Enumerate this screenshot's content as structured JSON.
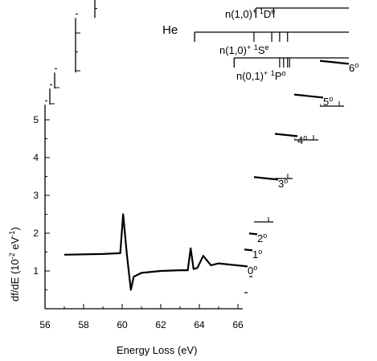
{
  "chart_data": {
    "type": "line",
    "atom_label": "He",
    "xlabel": "Energy Loss   (eV)",
    "ylabel": "df/dE  (10",
    "ylabel_exp": "-2",
    "ylabel_unit_tail": " eV",
    "ylabel_unit_exp": "-1",
    "ylabel_close": ")",
    "xlim": [
      56,
      66
    ],
    "ylim": [
      0,
      5.5
    ],
    "x_ticks": [
      "56",
      "58",
      "60",
      "62",
      "64",
      "66"
    ],
    "y_ticks": [
      "1",
      "2",
      "3",
      "4",
      "5"
    ],
    "series": [
      {
        "name": "0",
        "unit": "o",
        "offset": [
          0,
          0
        ],
        "x": [
          57.0,
          59.0,
          59.9,
          60.05,
          60.25,
          60.45,
          60.6,
          61,
          62,
          63,
          63.4,
          63.55,
          63.7,
          63.9,
          64.2,
          64.6,
          65.0,
          66.5
        ],
        "y": [
          1.43,
          1.45,
          1.47,
          2.5,
          1.4,
          0.5,
          0.85,
          0.95,
          1.0,
          1.02,
          1.02,
          1.6,
          1.05,
          1.08,
          1.4,
          1.15,
          1.2,
          1.12
        ]
      },
      {
        "name": "1",
        "unit": "o",
        "offset": [
          6,
          -20
        ],
        "x": [
          57.0,
          59.0,
          59.9,
          60.05,
          60.25,
          60.45,
          60.6,
          61,
          62,
          63,
          63.4,
          63.55,
          63.7,
          63.9,
          64.2,
          64.6,
          65.0,
          66.5
        ],
        "y": [
          1.43,
          1.45,
          1.47,
          2.5,
          1.4,
          0.5,
          0.85,
          0.95,
          1.0,
          1.02,
          1.02,
          1.6,
          1.05,
          1.08,
          1.4,
          1.15,
          1.2,
          1.12
        ]
      },
      {
        "name": "2",
        "unit": "o",
        "offset": [
          12,
          -40
        ],
        "x": [
          57.0,
          59.0,
          59.9,
          60.05,
          60.25,
          60.45,
          60.6,
          61,
          62,
          63,
          63.4,
          63.55,
          63.7,
          63.9,
          64.2,
          64.6,
          65.0,
          66.5
        ],
        "y": [
          1.43,
          1.45,
          1.47,
          2.5,
          1.4,
          0.5,
          0.85,
          0.95,
          1.0,
          1.02,
          1.02,
          1.6,
          1.05,
          1.08,
          1.4,
          1.15,
          1.2,
          1.12
        ]
      },
      {
        "name": "3",
        "unit": "o",
        "offset": [
          38,
          -108
        ],
        "x": [
          57.0,
          59.0,
          59.9,
          60.05,
          60.25,
          60.45,
          60.6,
          61,
          62,
          63,
          63.4,
          63.55,
          63.7,
          63.9,
          64.2,
          64.6,
          65.0,
          66.5
        ],
        "y": [
          1.43,
          1.45,
          1.47,
          2.5,
          1.4,
          0.5,
          0.85,
          0.95,
          1.0,
          1.02,
          1.02,
          1.6,
          1.05,
          1.08,
          1.4,
          1.15,
          1.2,
          1.12
        ]
      },
      {
        "name": "4",
        "unit": "o",
        "offset": [
          62,
          -162
        ],
        "x": [
          57.0,
          59.0,
          59.9,
          60.05,
          60.25,
          60.45,
          60.6,
          61,
          62,
          63,
          63.4,
          63.55,
          63.7,
          63.9,
          64.2,
          64.6,
          65.0,
          66.5
        ],
        "y": [
          1.43,
          1.45,
          1.47,
          2.5,
          1.4,
          0.5,
          0.85,
          0.95,
          1.0,
          1.02,
          1.02,
          1.6,
          1.05,
          1.08,
          1.4,
          1.15,
          1.2,
          1.12
        ]
      },
      {
        "name": "5",
        "unit": "o",
        "offset": [
          94,
          -210
        ],
        "x": [
          57.0,
          59.0,
          59.9,
          60.05,
          60.25,
          60.45,
          60.6,
          61,
          62,
          63,
          63.4,
          63.55,
          63.7,
          63.9,
          64.2,
          64.6,
          65.0,
          66.5
        ],
        "y": [
          1.43,
          1.45,
          1.47,
          2.5,
          1.4,
          0.5,
          0.85,
          0.95,
          1.0,
          1.02,
          1.02,
          1.6,
          1.05,
          1.08,
          1.4,
          1.15,
          1.2,
          1.12
        ]
      },
      {
        "name": "6",
        "unit": "o",
        "offset": [
          126,
          -252
        ],
        "x": [
          57.0,
          59.0,
          59.9,
          60.05,
          60.25,
          60.45,
          60.6,
          61,
          62,
          63,
          63.4,
          63.55,
          63.7,
          63.9,
          64.2,
          64.6,
          65.0,
          66.5
        ],
        "y": [
          1.43,
          1.45,
          1.47,
          2.5,
          1.4,
          0.5,
          0.85,
          0.95,
          1.0,
          1.02,
          1.02,
          1.6,
          1.05,
          1.08,
          1.4,
          1.15,
          1.2,
          1.12
        ]
      }
    ],
    "resonance_series": [
      {
        "base": "n(1,0)",
        "sup1": "+",
        "mid": " ",
        "sup2": "1",
        "term": "D",
        "sup3": "e",
        "onset": 61.3,
        "lines": [
          61.3,
          62.2
        ]
      },
      {
        "base": "n(1,0)",
        "sup1": "+",
        "mid": " ",
        "sup2": "1",
        "term": "S",
        "sup3": "e",
        "onset": 58.2,
        "lines": [
          61.2,
          62.1,
          62.5,
          62.9
        ]
      },
      {
        "base": "n(0,1)",
        "sup1": "+",
        "mid": " ",
        "sup2": "1",
        "term": "P",
        "sup3": "o",
        "onset": 60.2,
        "lines": [
          62.5,
          62.7,
          62.9,
          63.0
        ]
      }
    ],
    "grid": false
  }
}
